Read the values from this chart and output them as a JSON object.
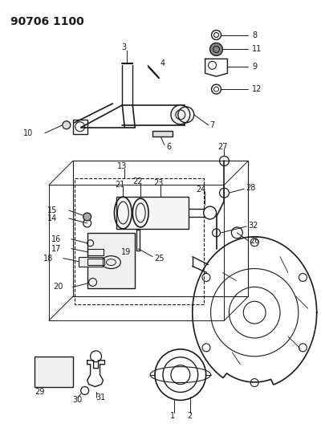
{
  "title": "90706 1100",
  "bg_color": "#ffffff",
  "line_color": "#1a1a1a",
  "figsize": [
    4.05,
    5.33
  ],
  "dpi": 100,
  "title_fontsize": 10,
  "label_fontsize": 7
}
